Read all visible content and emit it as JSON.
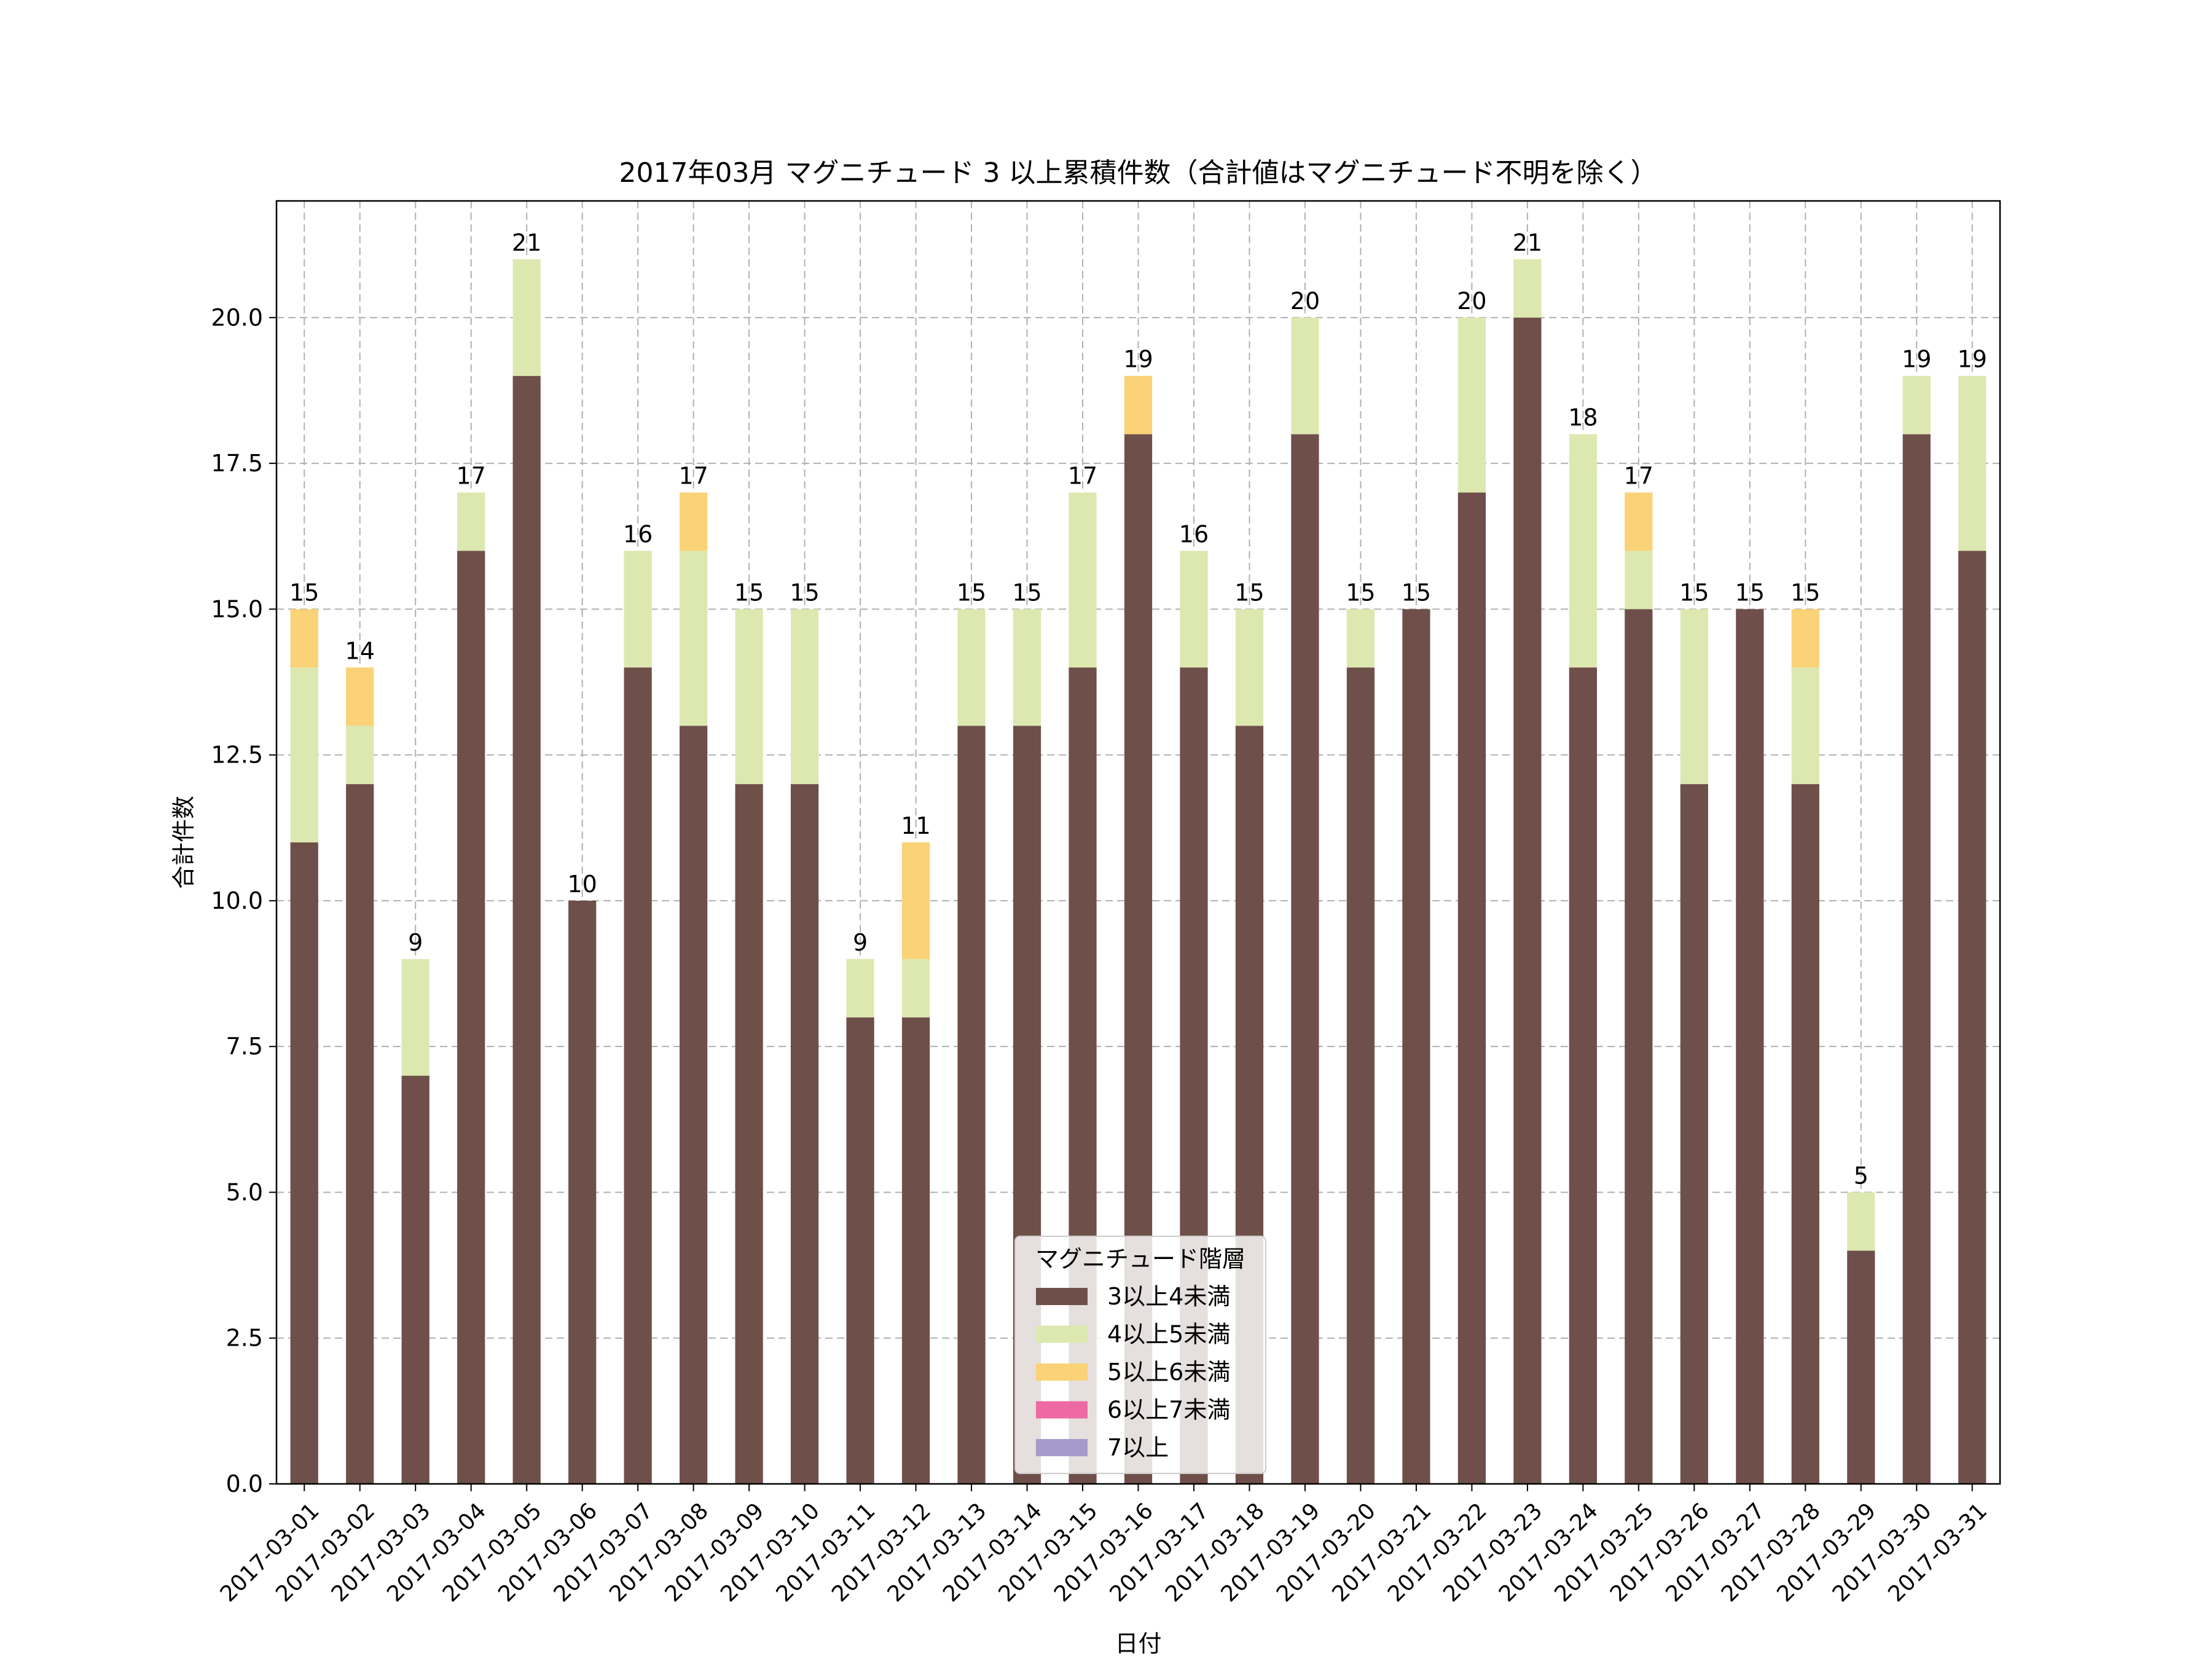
{
  "chart_data": {
    "type": "bar",
    "stacked": true,
    "title": "2017年03月 マグニチュード 3 以上累積件数（合計値はマグニチュード不明を除く）",
    "xlabel": "日付",
    "ylabel": "合計件数",
    "ylim": [
      0,
      22
    ],
    "yticks": [
      0.0,
      2.5,
      5.0,
      7.5,
      10.0,
      12.5,
      15.0,
      17.5,
      20.0
    ],
    "ytick_labels": [
      "0.0",
      "2.5",
      "5.0",
      "7.5",
      "10.0",
      "12.5",
      "15.0",
      "17.5",
      "20.0"
    ],
    "grid": true,
    "categories": [
      "2017-03-01",
      "2017-03-02",
      "2017-03-03",
      "2017-03-04",
      "2017-03-05",
      "2017-03-06",
      "2017-03-07",
      "2017-03-08",
      "2017-03-09",
      "2017-03-10",
      "2017-03-11",
      "2017-03-12",
      "2017-03-13",
      "2017-03-14",
      "2017-03-15",
      "2017-03-16",
      "2017-03-17",
      "2017-03-18",
      "2017-03-19",
      "2017-03-20",
      "2017-03-21",
      "2017-03-22",
      "2017-03-23",
      "2017-03-24",
      "2017-03-25",
      "2017-03-26",
      "2017-03-27",
      "2017-03-28",
      "2017-03-29",
      "2017-03-30",
      "2017-03-31"
    ],
    "series": [
      {
        "name": "3以上4未満",
        "color": "#6f4f4a",
        "values": [
          11,
          12,
          7,
          16,
          19,
          10,
          14,
          13,
          12,
          12,
          8,
          8,
          13,
          13,
          14,
          18,
          14,
          13,
          18,
          14,
          15,
          17,
          20,
          14,
          15,
          12,
          15,
          12,
          4,
          18,
          16
        ]
      },
      {
        "name": "4以上5未満",
        "color": "#dde8b0",
        "values": [
          3,
          1,
          2,
          1,
          2,
          0,
          2,
          3,
          3,
          3,
          1,
          1,
          2,
          2,
          3,
          0,
          2,
          2,
          2,
          1,
          0,
          3,
          1,
          4,
          1,
          3,
          0,
          2,
          1,
          1,
          3
        ]
      },
      {
        "name": "5以上6未満",
        "color": "#fad277",
        "values": [
          1,
          1,
          0,
          0,
          0,
          0,
          0,
          1,
          0,
          0,
          0,
          2,
          0,
          0,
          0,
          1,
          0,
          0,
          0,
          0,
          0,
          0,
          0,
          0,
          1,
          0,
          0,
          1,
          0,
          0,
          0
        ]
      },
      {
        "name": "6以上7未満",
        "color": "#ee6aa3",
        "values": [
          0,
          0,
          0,
          0,
          0,
          0,
          0,
          0,
          0,
          0,
          0,
          0,
          0,
          0,
          0,
          0,
          0,
          0,
          0,
          0,
          0,
          0,
          0,
          0,
          0,
          0,
          0,
          0,
          0,
          0,
          0
        ]
      },
      {
        "name": "7以上",
        "color": "#a69acb",
        "values": [
          0,
          0,
          0,
          0,
          0,
          0,
          0,
          0,
          0,
          0,
          0,
          0,
          0,
          0,
          0,
          0,
          0,
          0,
          0,
          0,
          0,
          0,
          0,
          0,
          0,
          0,
          0,
          0,
          0,
          0,
          0
        ]
      }
    ],
    "totals": [
      15,
      14,
      9,
      17,
      21,
      10,
      16,
      17,
      15,
      15,
      9,
      11,
      15,
      15,
      17,
      19,
      16,
      15,
      20,
      15,
      15,
      20,
      21,
      18,
      17,
      15,
      15,
      15,
      5,
      19,
      19
    ],
    "legend": {
      "title": "マグニチュード階層",
      "position": "bottom-center"
    }
  }
}
